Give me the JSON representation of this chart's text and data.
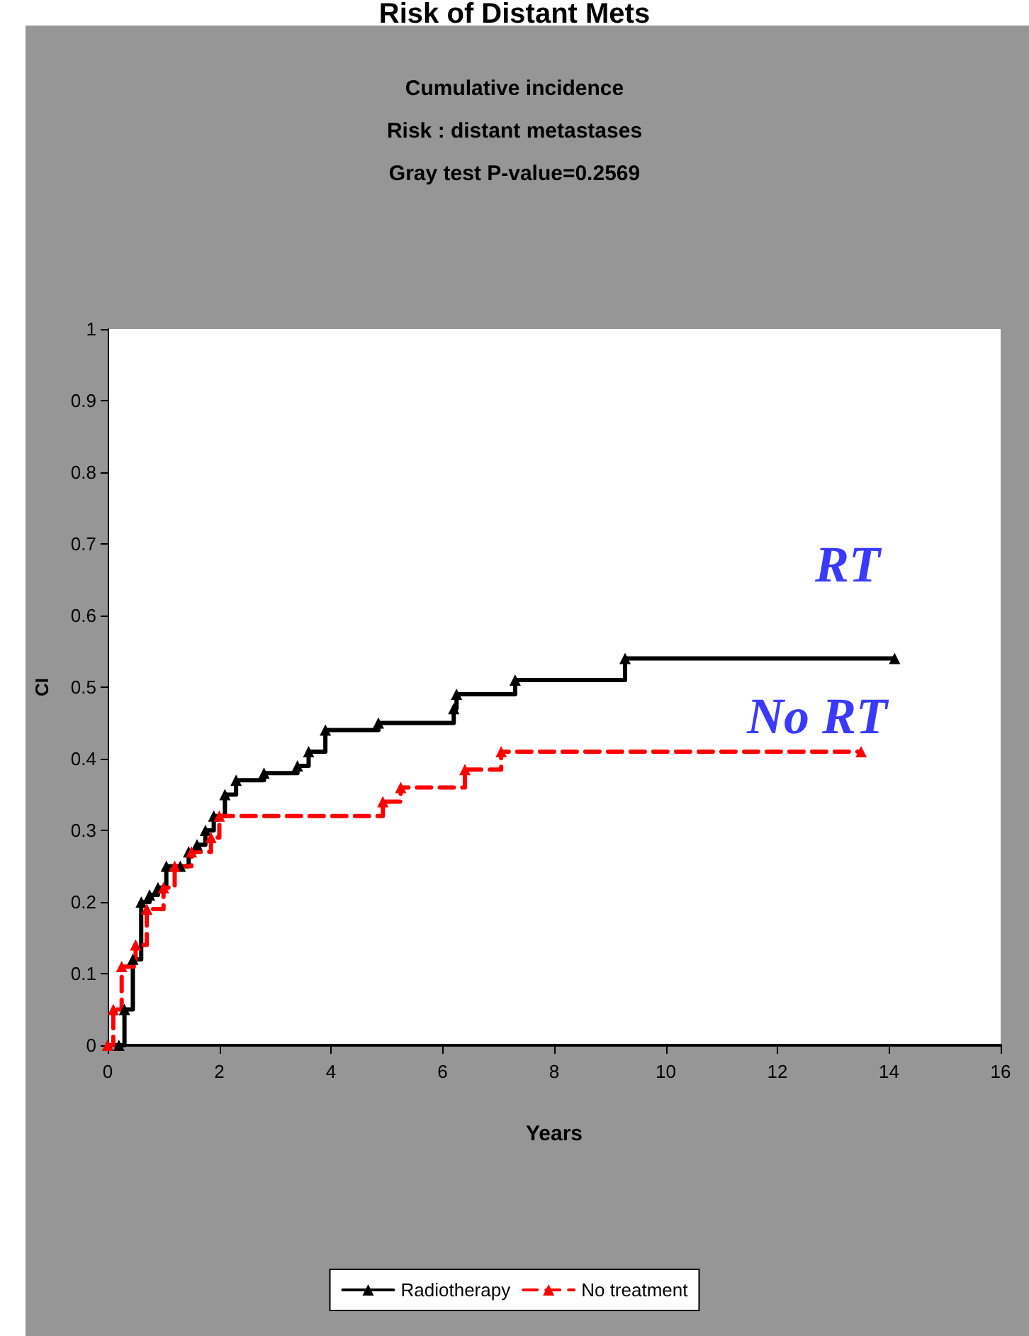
{
  "chart_data": {
    "type": "step",
    "title": "Risk of Distant Mets",
    "subtitle": "Cumulative incidence\nRisk : distant metastases\nGray test P-value=0.2569",
    "xlabel": "Years",
    "ylabel": "CI",
    "series": [
      {
        "name": "Radiotherapy",
        "color": "#000000",
        "line_style": "solid",
        "x": [
          0,
          0.2,
          0.3,
          0.45,
          0.6,
          0.75,
          0.9,
          1.05,
          1.3,
          1.45,
          1.6,
          1.75,
          1.9,
          2.1,
          2.3,
          2.8,
          3.4,
          3.6,
          3.9,
          4.85,
          6.2,
          6.25,
          7.3,
          9.27,
          14.1
        ],
        "values": [
          0,
          0,
          0.05,
          0.12,
          0.2,
          0.21,
          0.22,
          0.25,
          0.25,
          0.27,
          0.28,
          0.3,
          0.32,
          0.35,
          0.37,
          0.38,
          0.39,
          0.41,
          0.44,
          0.45,
          0.47,
          0.49,
          0.51,
          0.54,
          0.54
        ]
      },
      {
        "name": "No treatment",
        "color": "#ff0000",
        "line_style": "dashed",
        "x": [
          0,
          0.1,
          0.25,
          0.5,
          0.7,
          1.0,
          1.2,
          1.5,
          1.85,
          2.0,
          4.93,
          5.25,
          6.4,
          7.05,
          13.5
        ],
        "values": [
          0,
          0.05,
          0.11,
          0.14,
          0.19,
          0.22,
          0.25,
          0.27,
          0.29,
          0.32,
          0.34,
          0.36,
          0.385,
          0.41,
          0.41
        ]
      }
    ],
    "annotations": [
      "RT",
      "No RT"
    ],
    "xlim": [
      0,
      16
    ],
    "xticks": [
      0,
      2,
      4,
      6,
      8,
      10,
      12,
      14,
      16
    ],
    "ylim": [
      0,
      1
    ],
    "yticks": [
      0,
      0.1,
      0.2,
      0.3,
      0.4,
      0.5,
      0.6,
      0.7,
      0.8,
      0.9,
      1
    ],
    "grid": false,
    "legend": "bottom",
    "marker": "triangle"
  }
}
